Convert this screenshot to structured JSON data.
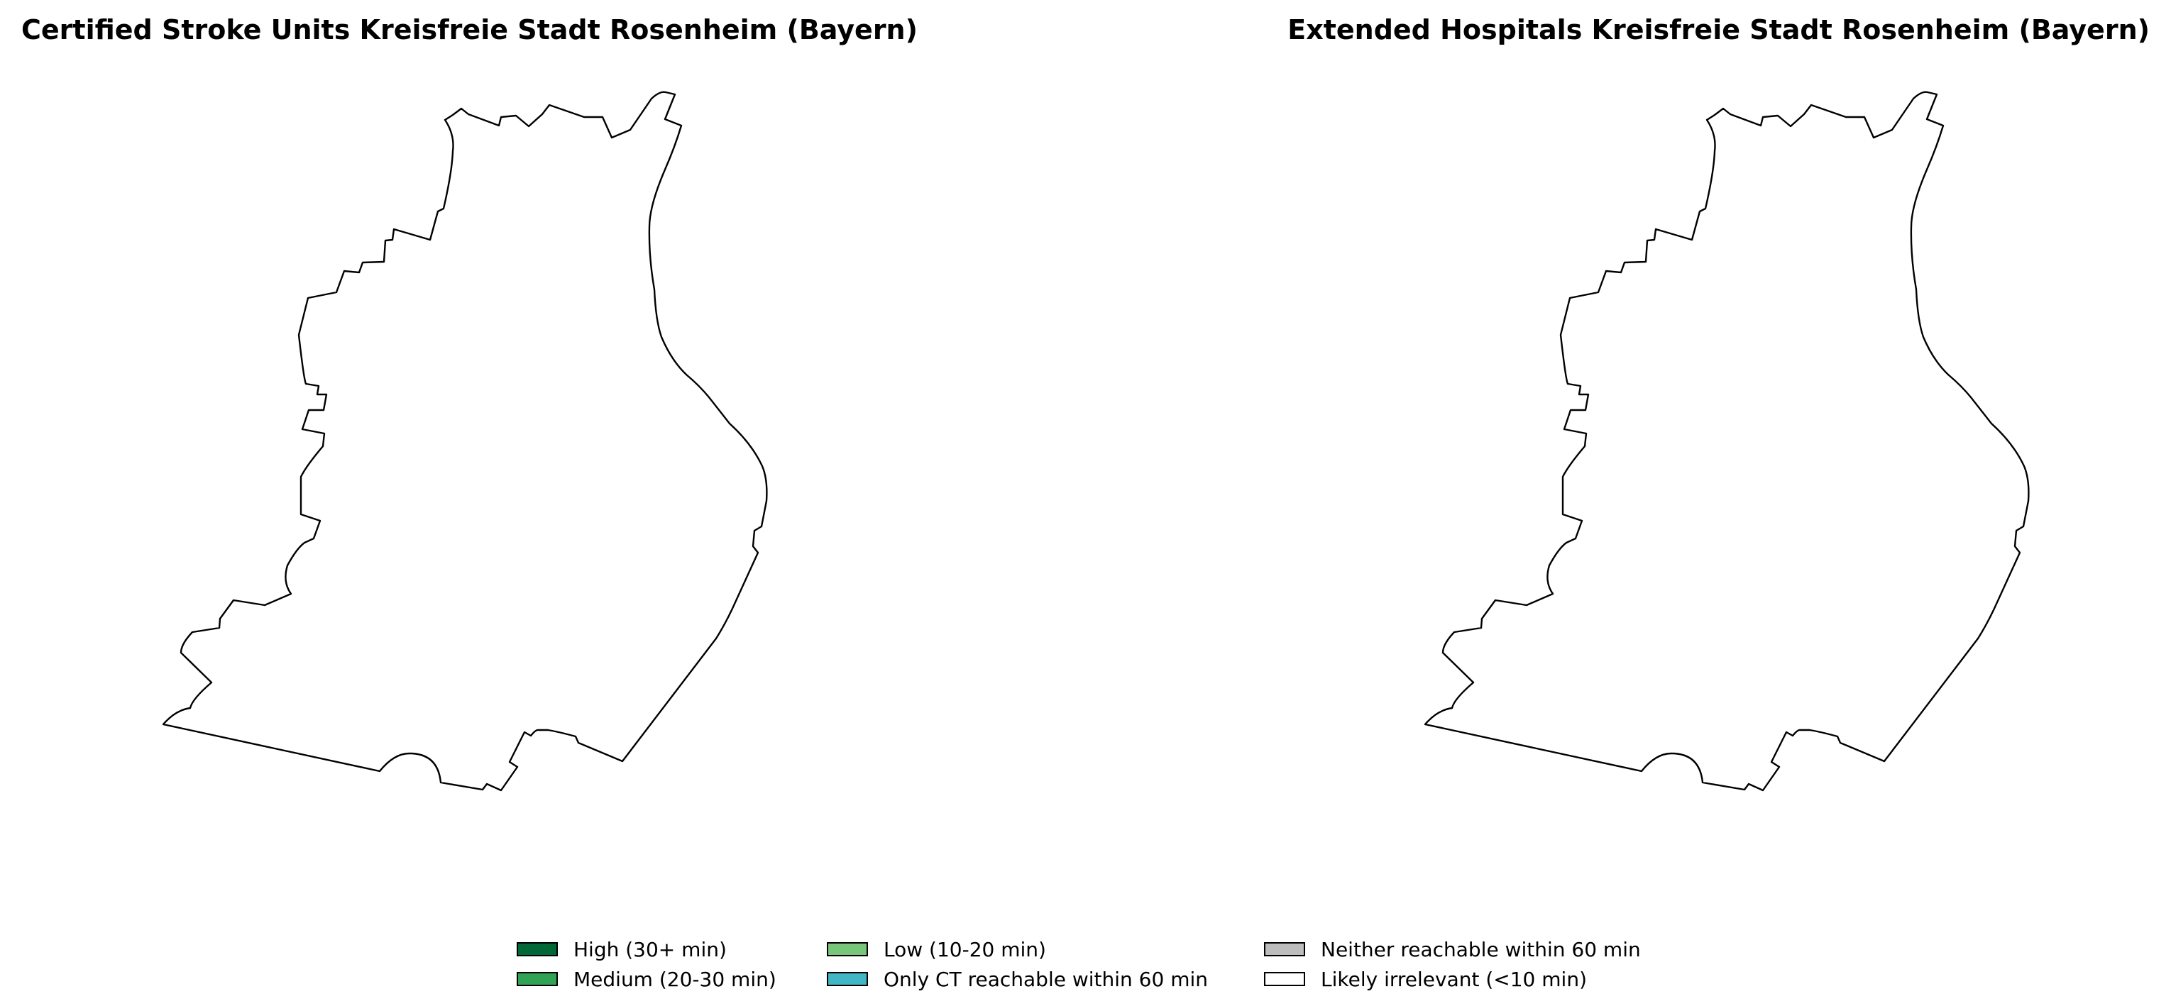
{
  "maps": [
    {
      "title": "Certified Stroke Units Kreisfreie Stadt Rosenheim (Bayern)"
    },
    {
      "title": "Extended Hospitals Kreisfreie Stadt Rosenheim (Bayern)"
    }
  ],
  "legend": {
    "items": [
      {
        "label": "High (30+ min)",
        "color": "#006837"
      },
      {
        "label": "Medium (20-30 min)",
        "color": "#31a354"
      },
      {
        "label": "Low (10-20 min)",
        "color": "#78c679"
      },
      {
        "label": "Only CT reachable within 60 min",
        "color": "#41b6c4"
      },
      {
        "label": "Neither reachable within 60 min",
        "color": "#bdbdbd"
      },
      {
        "label": "Likely irrelevant (<10 min)",
        "color": "#ffffff"
      }
    ]
  }
}
